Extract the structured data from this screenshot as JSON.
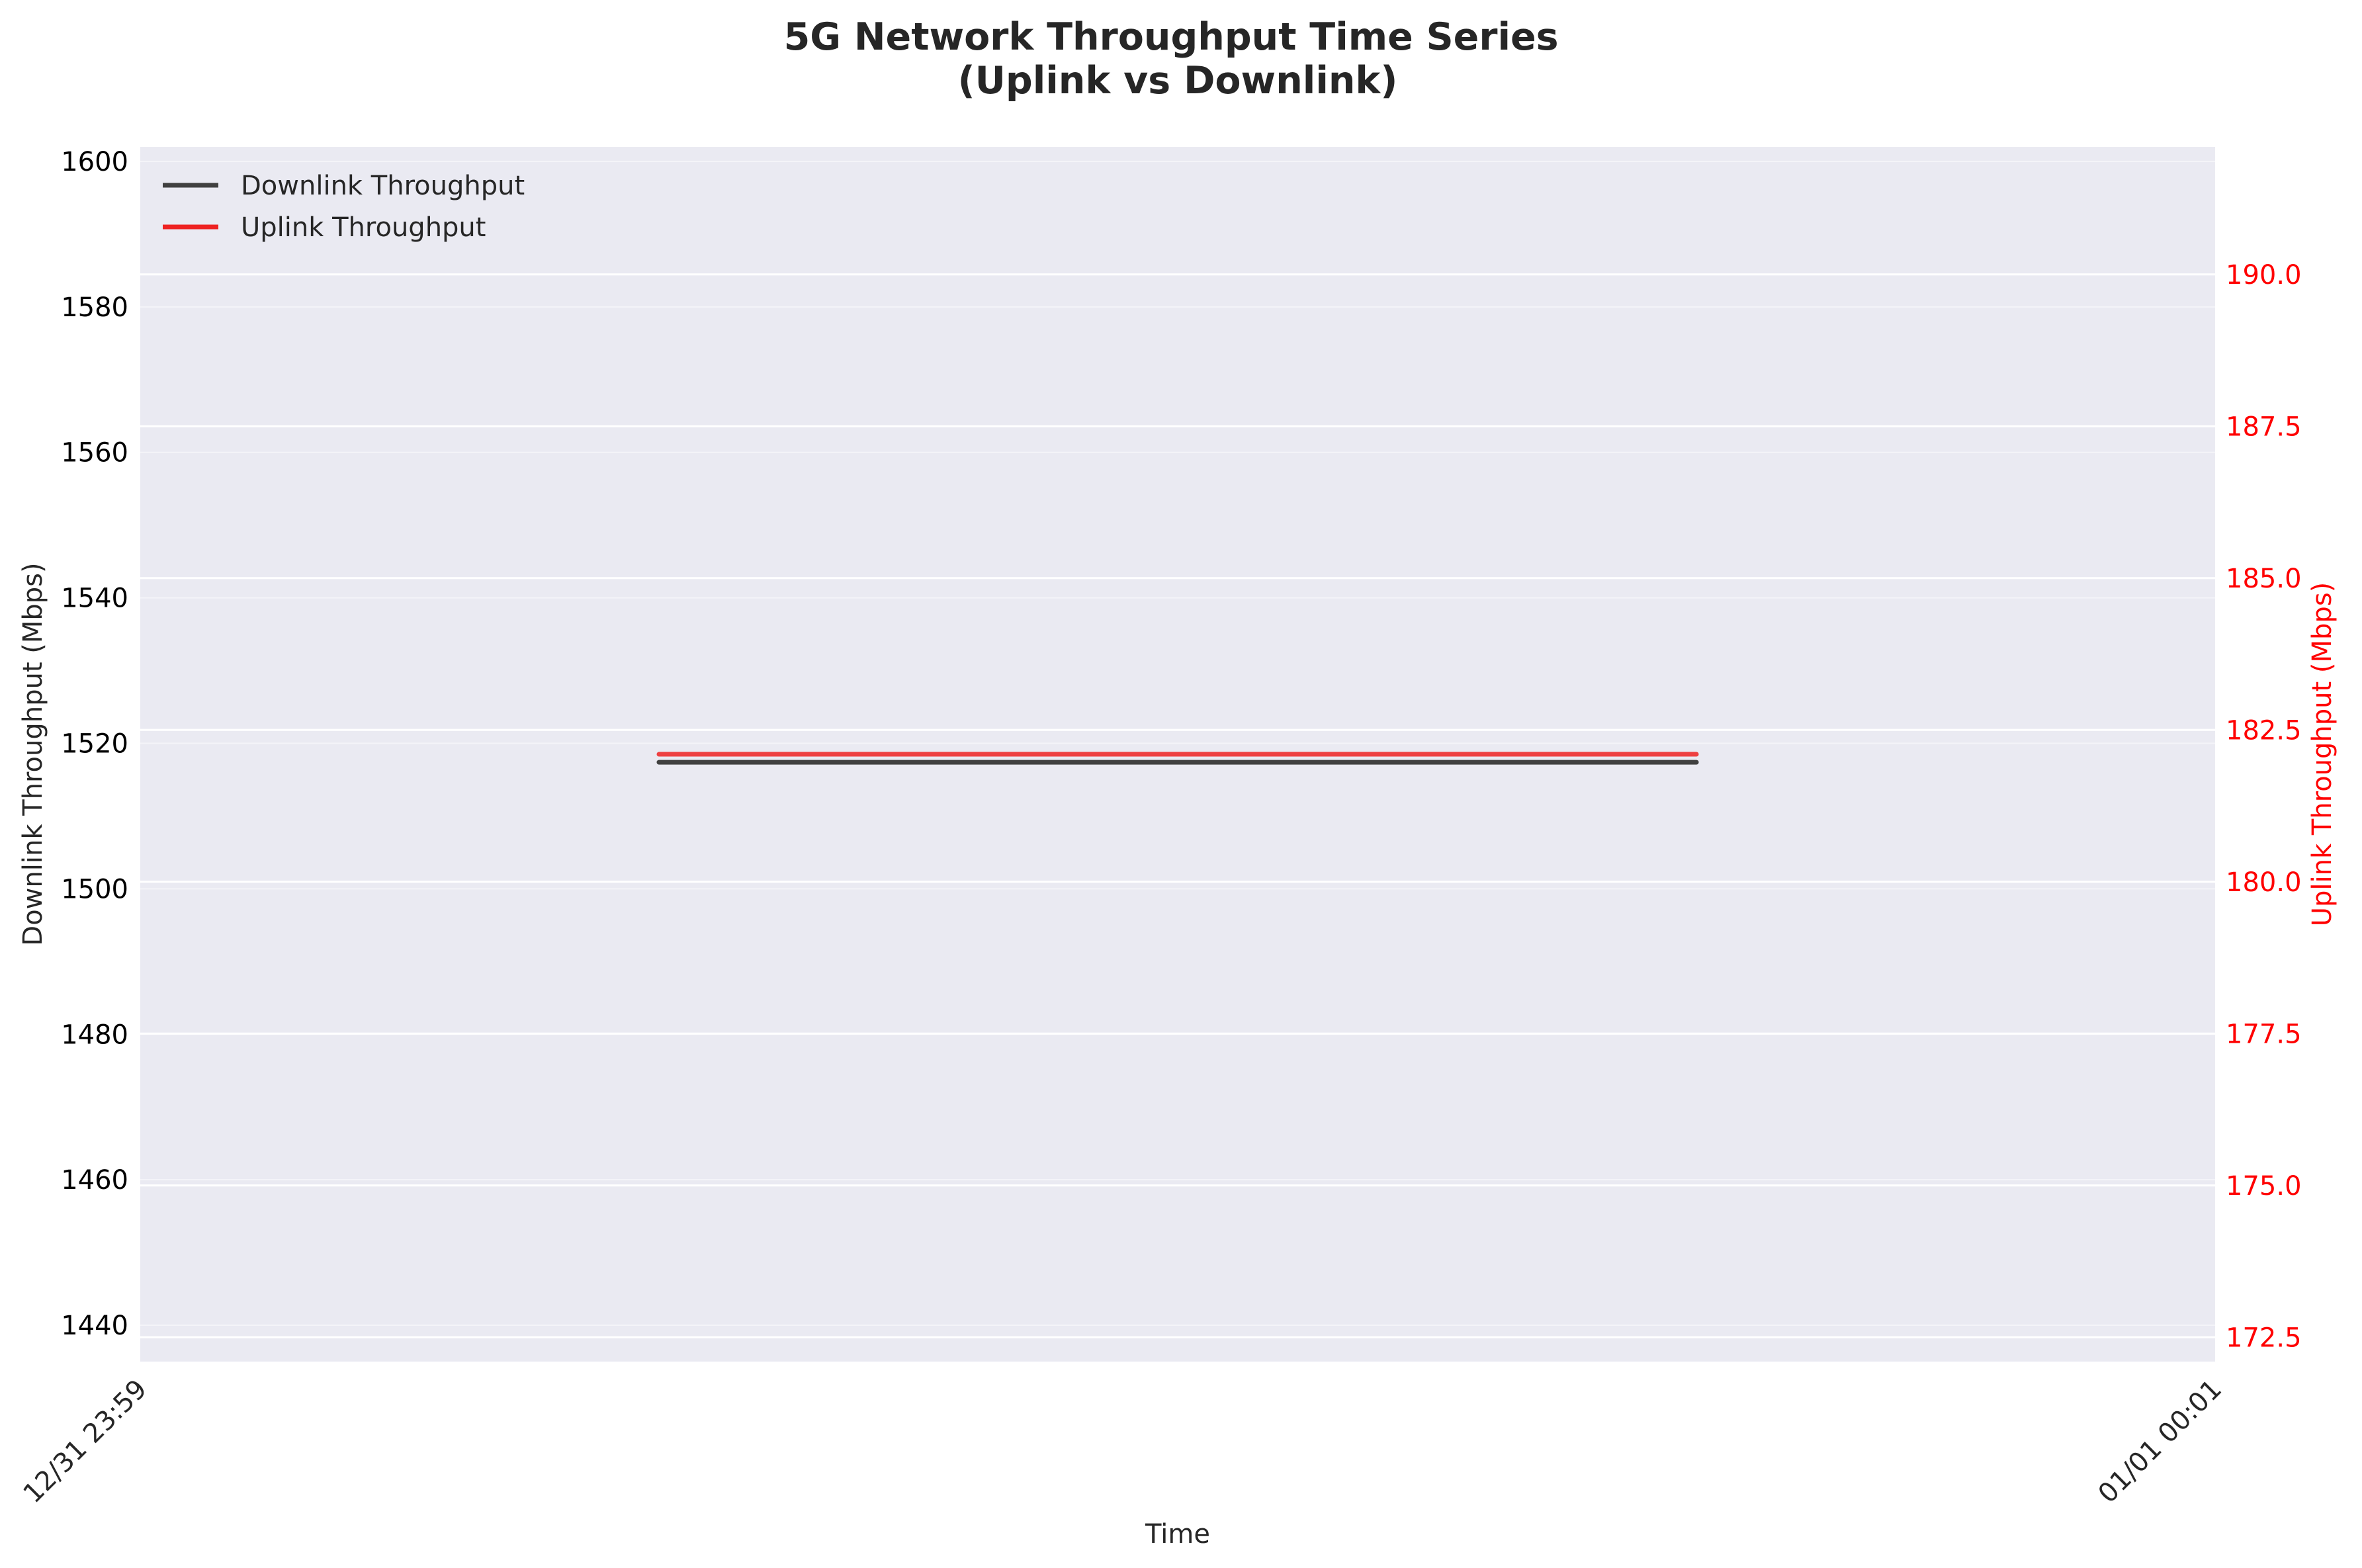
{
  "chart_data": {
    "type": "line",
    "title_lines": [
      "5G Network Throughput Time Series",
      "(Uplink vs Downlink)"
    ],
    "xlabel": "Time",
    "x_ticks": [
      "12/31 23:59",
      "01/01 00:01"
    ],
    "x": [
      "12/31 23:59:30",
      "01/01 00:00:30"
    ],
    "left_axis": {
      "label": "Downlink Throughput (Mbps)",
      "ylim": [
        1435,
        1602
      ],
      "ticks": [
        1440,
        1460,
        1480,
        1500,
        1520,
        1540,
        1560,
        1580,
        1600
      ],
      "color": "#000000"
    },
    "right_axis": {
      "label": "Uplink Throughput (Mbps)",
      "ylim": [
        172.1,
        192.1
      ],
      "ticks": [
        "172.5",
        "175.0",
        "177.5",
        "180.0",
        "182.5",
        "185.0",
        "187.5",
        "190.0"
      ],
      "color": "#ff0000"
    },
    "series": [
      {
        "name": "Downlink Throughput",
        "axis": "left",
        "color": "#404040",
        "values": [
          1517.4,
          1517.4
        ]
      },
      {
        "name": "Uplink Throughput",
        "axis": "right",
        "color": "#ee2222",
        "values": [
          182.1,
          182.1
        ]
      }
    ],
    "legend_position": "upper-left",
    "grid": true,
    "background": "#eaeaf2"
  }
}
